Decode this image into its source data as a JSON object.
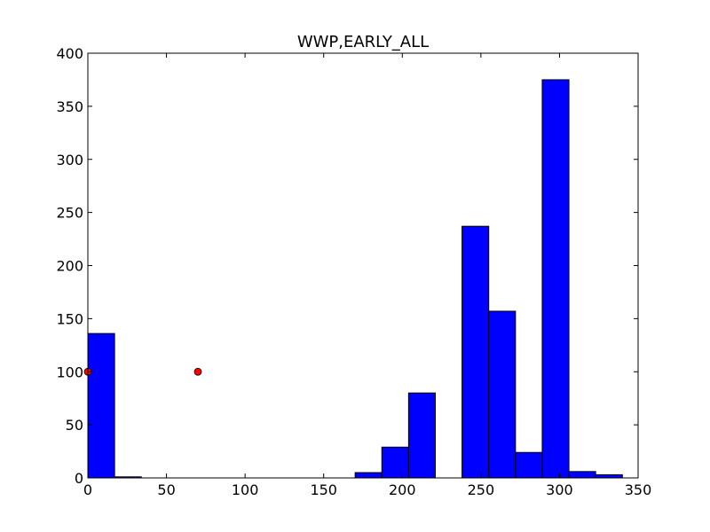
{
  "chart_data": {
    "type": "bar",
    "title": "WWP,EARLY_ALL",
    "xlabel": "",
    "ylabel": "",
    "xlim": [
      0,
      350
    ],
    "ylim": [
      0,
      400
    ],
    "xticks": [
      "0",
      "50",
      "100",
      "150",
      "200",
      "250",
      "300",
      "350"
    ],
    "yticks": [
      "0",
      "50",
      "100",
      "150",
      "200",
      "250",
      "300",
      "350",
      "400"
    ],
    "grid": false,
    "bar_color": "#0000ff",
    "bar_edge_color": "#000000",
    "marker_color": "#ff0000",
    "series": [
      {
        "type": "histogram",
        "bins": [
          {
            "x0": 0,
            "x1": 17,
            "value": 136
          },
          {
            "x0": 17,
            "x1": 34,
            "value": 1
          },
          {
            "x0": 34,
            "x1": 51,
            "value": 0
          },
          {
            "x0": 51,
            "x1": 68,
            "value": 0
          },
          {
            "x0": 68,
            "x1": 85,
            "value": 0
          },
          {
            "x0": 85,
            "x1": 102,
            "value": 0
          },
          {
            "x0": 102,
            "x1": 119,
            "value": 0
          },
          {
            "x0": 119,
            "x1": 136,
            "value": 0
          },
          {
            "x0": 136,
            "x1": 153,
            "value": 0
          },
          {
            "x0": 153,
            "x1": 170,
            "value": 0
          },
          {
            "x0": 170,
            "x1": 187,
            "value": 5
          },
          {
            "x0": 187,
            "x1": 204,
            "value": 29
          },
          {
            "x0": 204,
            "x1": 221,
            "value": 80
          },
          {
            "x0": 221,
            "x1": 238,
            "value": 0
          },
          {
            "x0": 238,
            "x1": 255,
            "value": 237
          },
          {
            "x0": 255,
            "x1": 272,
            "value": 157
          },
          {
            "x0": 272,
            "x1": 289,
            "value": 24
          },
          {
            "x0": 289,
            "x1": 306,
            "value": 375
          },
          {
            "x0": 306,
            "x1": 323,
            "value": 6
          },
          {
            "x0": 323,
            "x1": 340,
            "value": 3
          }
        ]
      },
      {
        "type": "scatter",
        "points": [
          {
            "x": 0,
            "y": 100
          },
          {
            "x": 70,
            "y": 100
          }
        ]
      }
    ]
  }
}
